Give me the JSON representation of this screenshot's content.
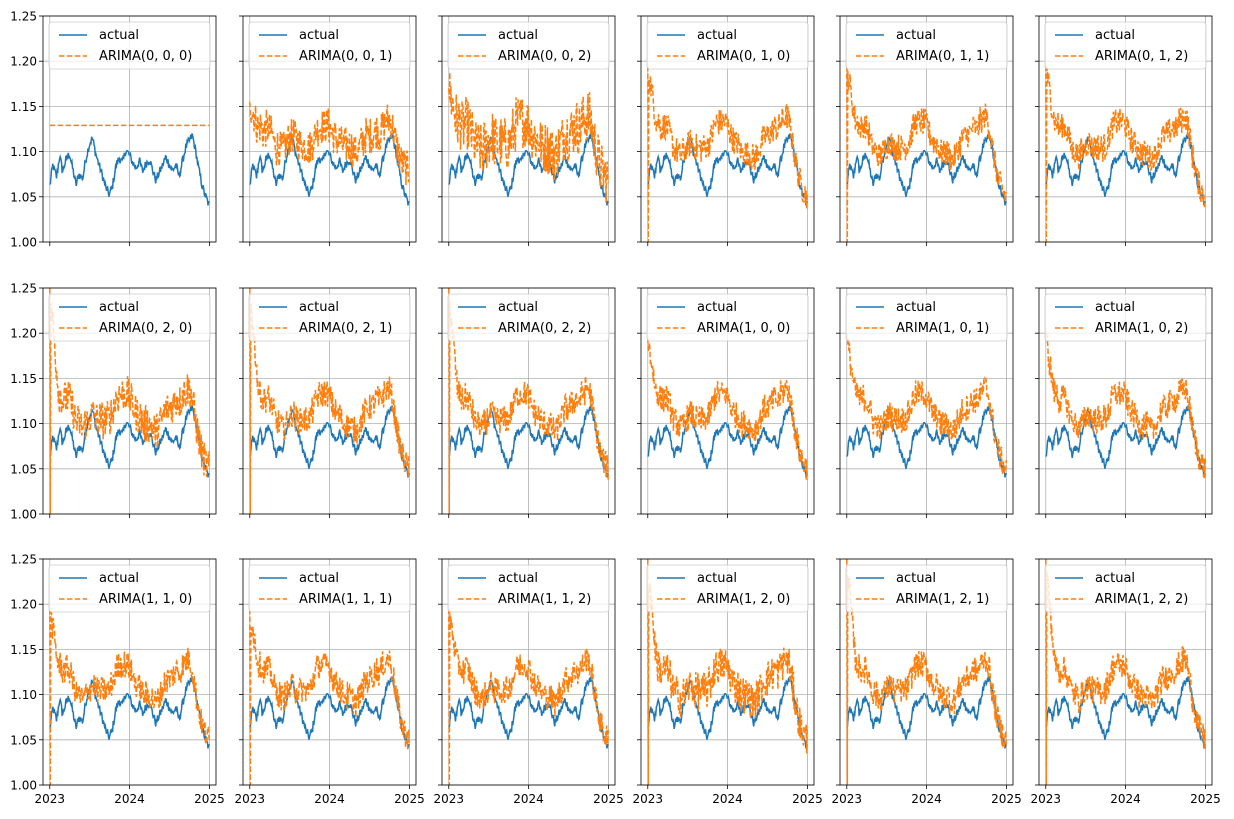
{
  "chart_data": {
    "type": "line",
    "layout": {
      "rows": 3,
      "cols": 6,
      "sharex": true,
      "sharey": true
    },
    "x_range": [
      "2022-12-01",
      "2025-01-31"
    ],
    "x_ticks": [
      {
        "date": "2023-01-01",
        "label": "2023"
      },
      {
        "date": "2024-01-01",
        "label": "2024"
      },
      {
        "date": "2025-01-01",
        "label": "2025"
      }
    ],
    "ylim": [
      1.0,
      1.25
    ],
    "y_ticks": [
      1.0,
      1.05,
      1.1,
      1.15,
      1.2,
      1.25
    ],
    "y_tick_labels": [
      "1.00",
      "1.05",
      "1.10",
      "1.15",
      "1.20",
      "1.25"
    ],
    "grid": true,
    "legend_location": "upper left",
    "series_colors": {
      "actual": "#1f77b4",
      "forecast": "#ff7f0e"
    },
    "actual_series": {
      "name": "actual",
      "x": [
        "2023-01-01",
        "2023-01-15",
        "2023-02-01",
        "2023-02-15",
        "2023-03-01",
        "2023-03-15",
        "2023-04-01",
        "2023-04-15",
        "2023-05-01",
        "2023-05-15",
        "2023-06-01",
        "2023-06-15",
        "2023-07-01",
        "2023-07-15",
        "2023-08-01",
        "2023-08-15",
        "2023-09-01",
        "2023-09-15",
        "2023-10-01",
        "2023-10-15",
        "2023-11-01",
        "2023-11-15",
        "2023-12-01",
        "2023-12-15",
        "2024-01-01",
        "2024-01-15",
        "2024-02-01",
        "2024-02-15",
        "2024-03-01",
        "2024-03-15",
        "2024-04-01",
        "2024-04-15",
        "2024-05-01",
        "2024-05-15",
        "2024-06-01",
        "2024-06-15",
        "2024-07-01",
        "2024-07-15",
        "2024-08-01",
        "2024-08-15",
        "2024-09-01",
        "2024-09-15",
        "2024-10-01",
        "2024-10-15",
        "2024-11-01",
        "2024-11-15",
        "2024-12-01",
        "2024-12-15",
        "2024-12-31"
      ],
      "y": [
        1.062,
        1.085,
        1.072,
        1.095,
        1.078,
        1.09,
        1.098,
        1.082,
        1.063,
        1.075,
        1.07,
        1.092,
        1.108,
        1.115,
        1.096,
        1.085,
        1.072,
        1.06,
        1.052,
        1.062,
        1.085,
        1.093,
        1.088,
        1.102,
        1.096,
        1.088,
        1.082,
        1.09,
        1.078,
        1.086,
        1.092,
        1.08,
        1.068,
        1.076,
        1.085,
        1.094,
        1.086,
        1.079,
        1.085,
        1.072,
        1.091,
        1.105,
        1.112,
        1.118,
        1.098,
        1.078,
        1.06,
        1.05,
        1.04
      ]
    },
    "panels": [
      {
        "label": "ARIMA(0, 0, 0)",
        "flat": 1.129
      },
      {
        "label": "ARIMA(0, 0, 1)",
        "start": 1.155,
        "dip": null,
        "mean": 1.115,
        "amp": 0.018,
        "tail": 1.08,
        "noise": 0.02
      },
      {
        "label": "ARIMA(0, 0, 2)",
        "start": 1.17,
        "dip": null,
        "mean": 1.118,
        "amp": 0.025,
        "tail": 1.07,
        "noise": 0.03
      },
      {
        "label": "ARIMA(0, 1, 0)",
        "start": 1.195,
        "dip": 1.0,
        "mean": 1.112,
        "amp": 0.03,
        "tail": 1.05,
        "noise": 0.015
      },
      {
        "label": "ARIMA(0, 1, 1)",
        "start": 1.195,
        "dip": 1.0,
        "mean": 1.112,
        "amp": 0.03,
        "tail": 1.05,
        "noise": 0.015
      },
      {
        "label": "ARIMA(0, 1, 2)",
        "start": 1.195,
        "dip": 1.0,
        "mean": 1.112,
        "amp": 0.03,
        "tail": 1.05,
        "noise": 0.015
      },
      {
        "label": "ARIMA(0, 2, 0)",
        "start": 1.25,
        "dip": 1.0,
        "mean": 1.112,
        "amp": 0.03,
        "tail": 1.05,
        "noise": 0.02
      },
      {
        "label": "ARIMA(0, 2, 1)",
        "start": 1.25,
        "dip": 1.0,
        "mean": 1.112,
        "amp": 0.03,
        "tail": 1.05,
        "noise": 0.015
      },
      {
        "label": "ARIMA(0, 2, 2)",
        "start": 1.25,
        "dip": 1.0,
        "mean": 1.112,
        "amp": 0.03,
        "tail": 1.05,
        "noise": 0.015
      },
      {
        "label": "ARIMA(1, 0, 0)",
        "start": 1.195,
        "dip": null,
        "mean": 1.112,
        "amp": 0.03,
        "tail": 1.05,
        "noise": 0.015
      },
      {
        "label": "ARIMA(1, 0, 1)",
        "start": 1.195,
        "dip": null,
        "mean": 1.112,
        "amp": 0.03,
        "tail": 1.05,
        "noise": 0.015
      },
      {
        "label": "ARIMA(1, 0, 2)",
        "start": 1.195,
        "dip": null,
        "mean": 1.112,
        "amp": 0.03,
        "tail": 1.05,
        "noise": 0.015
      },
      {
        "label": "ARIMA(1, 1, 0)",
        "start": 1.195,
        "dip": 1.0,
        "mean": 1.112,
        "amp": 0.03,
        "tail": 1.05,
        "noise": 0.015
      },
      {
        "label": "ARIMA(1, 1, 1)",
        "start": 1.195,
        "dip": 1.0,
        "mean": 1.112,
        "amp": 0.03,
        "tail": 1.05,
        "noise": 0.015
      },
      {
        "label": "ARIMA(1, 1, 2)",
        "start": 1.195,
        "dip": 1.0,
        "mean": 1.112,
        "amp": 0.03,
        "tail": 1.05,
        "noise": 0.015
      },
      {
        "label": "ARIMA(1, 2, 0)",
        "start": 1.25,
        "dip": 1.0,
        "mean": 1.112,
        "amp": 0.03,
        "tail": 1.05,
        "noise": 0.02
      },
      {
        "label": "ARIMA(1, 2, 1)",
        "start": 1.25,
        "dip": 1.0,
        "mean": 1.112,
        "amp": 0.03,
        "tail": 1.05,
        "noise": 0.015
      },
      {
        "label": "ARIMA(1, 2, 2)",
        "start": 1.25,
        "dip": 1.0,
        "mean": 1.112,
        "amp": 0.03,
        "tail": 1.05,
        "noise": 0.015
      }
    ]
  }
}
